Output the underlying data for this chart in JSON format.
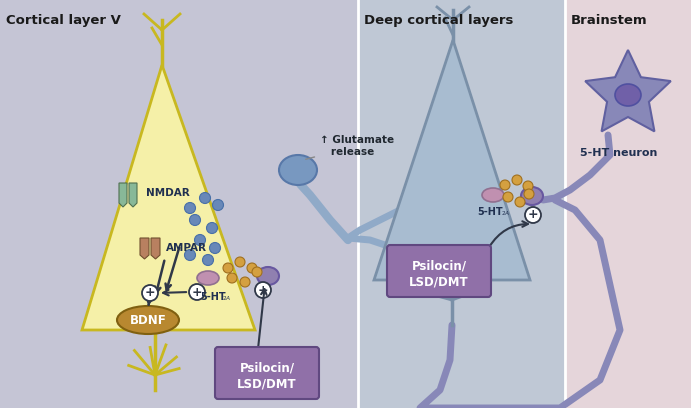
{
  "bg_left": "#c5c5d5",
  "bg_mid": "#bfc8d5",
  "bg_right": "#e5d5da",
  "title_left": "Cortical layer V",
  "title_mid": "Deep cortical layers",
  "title_right": "Brainstem",
  "title_color": "#1a1a1a",
  "neuron_yellow": "#f5f0a8",
  "neuron_yellow_edge": "#c8b820",
  "neuron_blue": "#a8bcd0",
  "neuron_blue_edge": "#7a90a8",
  "neuron_purple": "#8888b8",
  "neuron_purple_edge": "#6060a0",
  "receptor_green": "#88b898",
  "receptor_brown": "#b88060",
  "receptor_pink": "#c090b0",
  "synapse_blue": "#7898c0",
  "synapse_purple": "#9080b0",
  "dots_blue": "#6888b8",
  "dots_orange": "#d4a040",
  "bdnf_fill": "#b88830",
  "bdnf_edge": "#806010",
  "box_psilocin": "#9070a8",
  "arrow_dark": "#303848",
  "plus_color": "#303848",
  "text_dark": "#202830",
  "text_blue": "#203050",
  "divider": "#ffffff"
}
